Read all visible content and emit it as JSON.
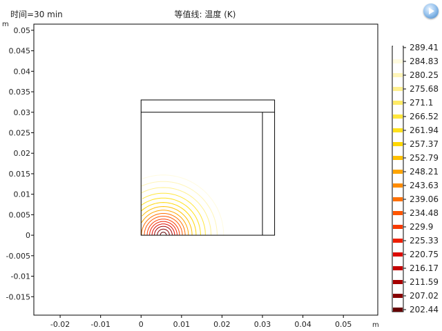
{
  "header": {
    "time_label": "时间=30 min",
    "plot_title": "等值线: 温度 (K)"
  },
  "toolbar": {
    "icon": "comsol-logo-icon"
  },
  "chart_data": {
    "type": "contour",
    "xunit": "m",
    "yunit": "m",
    "xlim": [
      -0.0265,
      0.0585
    ],
    "ylim": [
      -0.0195,
      0.0515
    ],
    "xticks": [
      -0.02,
      -0.01,
      0,
      0.01,
      0.02,
      0.03,
      0.04,
      0.05
    ],
    "xtick_labels": [
      "-0.02",
      "-0.01",
      "0",
      "0.01",
      "0.02",
      "0.03",
      "0.04",
      "0.05"
    ],
    "yticks": [
      -0.015,
      -0.01,
      -0.005,
      0,
      0.005,
      0.01,
      0.015,
      0.02,
      0.025,
      0.03,
      0.035,
      0.04,
      0.045,
      0.05
    ],
    "ytick_labels": [
      "-0.015",
      "-0.01",
      "-0.005",
      "0",
      "0.005",
      "0.01",
      "0.015",
      "0.02",
      "0.025",
      "0.03",
      "0.035",
      "0.04",
      "0.045",
      "0.05"
    ],
    "geometry": {
      "outer_box": {
        "x": [
          0,
          0.033
        ],
        "y": [
          0,
          0.033
        ]
      },
      "lid_line_y": 0.03,
      "wall_line_x": 0.03
    },
    "contour_source": {
      "x": 0.0055,
      "y": 0
    },
    "contour_radii": [
      0.00075,
      0.0015,
      0.0022,
      0.0028,
      0.0034,
      0.004,
      0.0047,
      0.0054,
      0.0062,
      0.0071,
      0.0081,
      0.0092,
      0.0104,
      0.0118,
      0.0133,
      0.0149
    ],
    "legend": {
      "levels": [
        "289.41",
        "284.83",
        "280.25",
        "275.68",
        "271.1",
        "266.52",
        "261.94",
        "257.37",
        "252.79",
        "248.21",
        "243.63",
        "239.06",
        "234.48",
        "229.9",
        "225.33",
        "220.75",
        "216.17",
        "211.59",
        "207.02",
        "202.44"
      ],
      "colors": [
        "#ffffff",
        "#fffbe0",
        "#fff5b8",
        "#fff08f",
        "#ffeb66",
        "#ffe63d",
        "#ffe11a",
        "#ffd700",
        "#ffc000",
        "#ffa500",
        "#ff8c00",
        "#ff7000",
        "#ff5500",
        "#f83a00",
        "#ee1e00",
        "#dd0a00",
        "#c40000",
        "#a60000",
        "#870000",
        "#660000"
      ]
    }
  }
}
